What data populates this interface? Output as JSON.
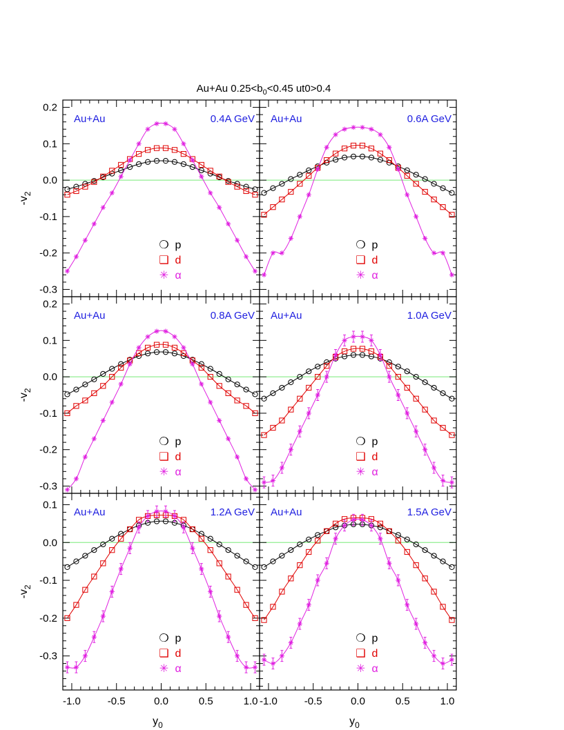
{
  "figure_title": "Au+Au  0.25<b0<0.45  ut0>0.4",
  "figure_title_parts": {
    "pre": "Au+Au  0.25<b",
    "sub": "0",
    "post": "<0.45  ut0>0.4"
  },
  "colors": {
    "p": "#000000",
    "d": "#e00000",
    "alpha": "#e020e0",
    "zero_line": "#90ee90",
    "panel_label": "#2020e0"
  },
  "ylabel": {
    "main": "-v",
    "sub": "2"
  },
  "xlabel": {
    "main": "y",
    "sub": "0"
  },
  "legend": [
    {
      "key": "p",
      "symbol": "❍",
      "label": "p"
    },
    {
      "key": "d",
      "symbol": "❑",
      "label": "d"
    },
    {
      "key": "alpha",
      "symbol": "✳",
      "label": "α"
    }
  ],
  "chart_data": [
    {
      "type": "line",
      "system": "Au+Au",
      "energy": "0.4A GeV",
      "ylim": [
        -0.32,
        0.22
      ],
      "x": [
        -1.05,
        -0.95,
        -0.85,
        -0.75,
        -0.65,
        -0.55,
        -0.45,
        -0.35,
        -0.25,
        -0.15,
        -0.05,
        0.05,
        0.15,
        0.25,
        0.35,
        0.45,
        0.55,
        0.65,
        0.75,
        0.85,
        0.95,
        1.05
      ],
      "series": [
        {
          "name": "p",
          "values": [
            -0.025,
            -0.018,
            -0.01,
            -0.002,
            0.008,
            0.018,
            0.027,
            0.036,
            0.044,
            0.05,
            0.053,
            0.053,
            0.05,
            0.044,
            0.036,
            0.027,
            0.018,
            0.008,
            -0.002,
            -0.01,
            -0.018,
            -0.025
          ]
        },
        {
          "name": "d",
          "values": [
            -0.04,
            -0.03,
            -0.018,
            -0.005,
            0.01,
            0.026,
            0.042,
            0.058,
            0.072,
            0.083,
            0.088,
            0.088,
            0.083,
            0.072,
            0.058,
            0.042,
            0.026,
            0.01,
            -0.005,
            -0.018,
            -0.03,
            -0.04
          ]
        },
        {
          "name": "alpha",
          "values": [
            -0.25,
            -0.21,
            -0.165,
            -0.12,
            -0.075,
            -0.035,
            0.01,
            0.055,
            0.1,
            0.14,
            0.155,
            0.155,
            0.14,
            0.1,
            0.055,
            0.01,
            -0.035,
            -0.075,
            -0.12,
            -0.165,
            -0.21,
            -0.25
          ]
        }
      ]
    },
    {
      "type": "line",
      "system": "Au+Au",
      "energy": "0.6A GeV",
      "ylim": [
        -0.32,
        0.22
      ],
      "x": [
        -1.05,
        -0.95,
        -0.85,
        -0.75,
        -0.65,
        -0.55,
        -0.45,
        -0.35,
        -0.25,
        -0.15,
        -0.05,
        0.05,
        0.15,
        0.25,
        0.35,
        0.45,
        0.55,
        0.65,
        0.75,
        0.85,
        0.95,
        1.05
      ],
      "series": [
        {
          "name": "p",
          "values": [
            -0.035,
            -0.022,
            -0.01,
            0.003,
            0.015,
            0.027,
            0.038,
            0.048,
            0.056,
            0.062,
            0.065,
            0.065,
            0.062,
            0.056,
            0.048,
            0.038,
            0.027,
            0.015,
            0.003,
            -0.01,
            -0.022,
            -0.035
          ]
        },
        {
          "name": "d",
          "values": [
            -0.095,
            -0.074,
            -0.053,
            -0.032,
            -0.01,
            0.012,
            0.034,
            0.055,
            0.073,
            0.087,
            0.095,
            0.095,
            0.087,
            0.073,
            0.055,
            0.034,
            0.012,
            -0.01,
            -0.032,
            -0.053,
            -0.074,
            -0.095
          ]
        },
        {
          "name": "alpha",
          "values": [
            -0.26,
            -0.2,
            -0.2,
            -0.16,
            -0.1,
            -0.04,
            0.03,
            0.09,
            0.125,
            0.14,
            0.145,
            0.145,
            0.14,
            0.125,
            0.09,
            0.03,
            -0.04,
            -0.1,
            -0.16,
            -0.2,
            -0.2,
            -0.26
          ]
        }
      ]
    },
    {
      "type": "line",
      "system": "Au+Au",
      "energy": "0.8A GeV",
      "ylim": [
        -0.32,
        0.22
      ],
      "x": [
        -1.05,
        -0.95,
        -0.85,
        -0.75,
        -0.65,
        -0.55,
        -0.45,
        -0.35,
        -0.25,
        -0.15,
        -0.05,
        0.05,
        0.15,
        0.25,
        0.35,
        0.45,
        0.55,
        0.65,
        0.75,
        0.85,
        0.95,
        1.05
      ],
      "series": [
        {
          "name": "p",
          "values": [
            -0.048,
            -0.035,
            -0.021,
            -0.007,
            0.008,
            0.022,
            0.035,
            0.047,
            0.057,
            0.064,
            0.068,
            0.068,
            0.064,
            0.057,
            0.047,
            0.035,
            0.022,
            0.008,
            -0.007,
            -0.021,
            -0.035,
            -0.048
          ]
        },
        {
          "name": "d",
          "values": [
            -0.1,
            -0.08,
            -0.065,
            -0.045,
            -0.025,
            0.0,
            0.025,
            0.045,
            0.065,
            0.08,
            0.088,
            0.088,
            0.08,
            0.065,
            0.045,
            0.025,
            0.0,
            -0.025,
            -0.045,
            -0.065,
            -0.08,
            -0.1
          ]
        },
        {
          "name": "alpha",
          "values": [
            -0.31,
            -0.28,
            -0.22,
            -0.17,
            -0.12,
            -0.07,
            -0.02,
            0.035,
            0.08,
            0.11,
            0.125,
            0.125,
            0.11,
            0.08,
            0.035,
            -0.02,
            -0.07,
            -0.12,
            -0.17,
            -0.22,
            -0.28,
            -0.31
          ]
        }
      ]
    },
    {
      "type": "line",
      "system": "Au+Au",
      "energy": "1.0A GeV",
      "ylim": [
        -0.32,
        0.22
      ],
      "x": [
        -1.05,
        -0.95,
        -0.85,
        -0.75,
        -0.65,
        -0.55,
        -0.45,
        -0.35,
        -0.25,
        -0.15,
        -0.05,
        0.05,
        0.15,
        0.25,
        0.35,
        0.45,
        0.55,
        0.65,
        0.75,
        0.85,
        0.95,
        1.05
      ],
      "series": [
        {
          "name": "p",
          "values": [
            -0.06,
            -0.045,
            -0.03,
            -0.015,
            0.0,
            0.015,
            0.028,
            0.04,
            0.05,
            0.056,
            0.06,
            0.06,
            0.056,
            0.05,
            0.04,
            0.028,
            0.015,
            0.0,
            -0.015,
            -0.03,
            -0.045,
            -0.06
          ]
        },
        {
          "name": "d",
          "values": [
            -0.16,
            -0.14,
            -0.12,
            -0.09,
            -0.06,
            -0.03,
            0.0,
            0.03,
            0.055,
            0.07,
            0.077,
            0.077,
            0.07,
            0.055,
            0.03,
            0.0,
            -0.03,
            -0.06,
            -0.09,
            -0.12,
            -0.14,
            -0.16
          ]
        },
        {
          "name": "alpha",
          "values": [
            -0.29,
            -0.285,
            -0.25,
            -0.2,
            -0.15,
            -0.1,
            -0.05,
            0.0,
            0.06,
            0.1,
            0.11,
            0.11,
            0.1,
            0.06,
            0.0,
            -0.05,
            -0.1,
            -0.15,
            -0.2,
            -0.25,
            -0.285,
            -0.29
          ]
        }
      ]
    },
    {
      "type": "line",
      "system": "Au+Au",
      "energy": "1.2A GeV",
      "ylim": [
        -0.39,
        0.13
      ],
      "x": [
        -1.05,
        -0.95,
        -0.85,
        -0.75,
        -0.65,
        -0.55,
        -0.45,
        -0.35,
        -0.25,
        -0.15,
        -0.05,
        0.05,
        0.15,
        0.25,
        0.35,
        0.45,
        0.55,
        0.65,
        0.75,
        0.85,
        0.95,
        1.05
      ],
      "series": [
        {
          "name": "p",
          "values": [
            -0.065,
            -0.05,
            -0.035,
            -0.02,
            -0.005,
            0.01,
            0.023,
            0.035,
            0.045,
            0.052,
            0.056,
            0.056,
            0.052,
            0.045,
            0.035,
            0.023,
            0.01,
            -0.005,
            -0.02,
            -0.035,
            -0.05,
            -0.065
          ]
        },
        {
          "name": "d",
          "values": [
            -0.2,
            -0.165,
            -0.125,
            -0.09,
            -0.055,
            -0.02,
            0.01,
            0.035,
            0.06,
            0.07,
            0.072,
            0.072,
            0.07,
            0.06,
            0.035,
            0.01,
            -0.02,
            -0.055,
            -0.09,
            -0.125,
            -0.165,
            -0.2
          ]
        },
        {
          "name": "alpha",
          "values": [
            -0.33,
            -0.33,
            -0.3,
            -0.25,
            -0.195,
            -0.13,
            -0.07,
            -0.015,
            0.04,
            0.07,
            0.082,
            0.082,
            0.07,
            0.04,
            -0.015,
            -0.07,
            -0.13,
            -0.195,
            -0.25,
            -0.3,
            -0.33,
            -0.33
          ]
        }
      ]
    },
    {
      "type": "line",
      "system": "Au+Au",
      "energy": "1.5A GeV",
      "ylim": [
        -0.39,
        0.13
      ],
      "x": [
        -1.05,
        -0.95,
        -0.85,
        -0.75,
        -0.65,
        -0.55,
        -0.45,
        -0.35,
        -0.25,
        -0.15,
        -0.05,
        0.05,
        0.15,
        0.25,
        0.35,
        0.45,
        0.55,
        0.65,
        0.75,
        0.85,
        0.95,
        1.05
      ],
      "series": [
        {
          "name": "p",
          "values": [
            -0.065,
            -0.05,
            -0.035,
            -0.02,
            -0.005,
            0.008,
            0.02,
            0.03,
            0.04,
            0.045,
            0.048,
            0.048,
            0.045,
            0.04,
            0.03,
            0.02,
            0.008,
            -0.005,
            -0.02,
            -0.035,
            -0.05,
            -0.065
          ]
        },
        {
          "name": "d",
          "values": [
            -0.205,
            -0.17,
            -0.13,
            -0.095,
            -0.06,
            -0.025,
            0.005,
            0.03,
            0.05,
            0.062,
            0.065,
            0.065,
            0.062,
            0.05,
            0.03,
            0.005,
            -0.025,
            -0.06,
            -0.095,
            -0.13,
            -0.17,
            -0.205
          ]
        },
        {
          "name": "alpha",
          "values": [
            -0.31,
            -0.32,
            -0.3,
            -0.265,
            -0.215,
            -0.165,
            -0.1,
            -0.055,
            0.01,
            0.045,
            0.06,
            0.06,
            0.045,
            0.01,
            -0.055,
            -0.1,
            -0.165,
            -0.215,
            -0.265,
            -0.3,
            -0.32,
            -0.31
          ]
        }
      ]
    }
  ],
  "ytick_labels_top": [
    "0.2",
    "0.1",
    "0.0",
    "-0.1",
    "-0.2",
    "-0.3"
  ],
  "ytick_labels_bottom": [
    "0.1",
    "0.0",
    "-0.1",
    "-0.2",
    "-0.3"
  ],
  "xtick_labels_left": [
    "-1.0",
    "-0.5",
    "0.0",
    "0.5",
    "1.0"
  ],
  "xtick_labels_right": [
    "-1.0",
    "-0.5",
    "0.0",
    "0.5",
    "1.0"
  ]
}
